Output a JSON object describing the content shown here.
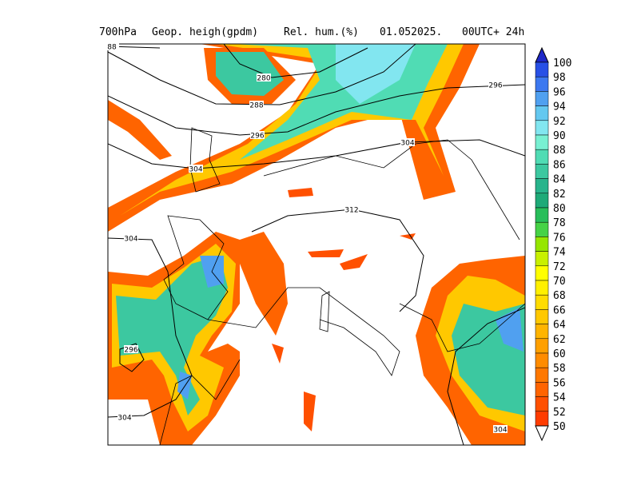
{
  "header": {
    "parts": [
      "700hPa",
      "Geop. heigh(gpdm)",
      "Rel. hum.(%)",
      "01.052025.",
      "00UTC+ 24h"
    ]
  },
  "map": {
    "contour_labels": [
      "88",
      "280",
      "288",
      "296",
      "304",
      "312",
      "304",
      "296",
      "304",
      "304",
      "296",
      "304"
    ]
  },
  "colorbar": {
    "labels": [
      100,
      98,
      96,
      94,
      92,
      90,
      88,
      86,
      84,
      82,
      80,
      78,
      76,
      74,
      72,
      70,
      68,
      66,
      64,
      62,
      60,
      58,
      56,
      54,
      52,
      50
    ],
    "colors": [
      "#2850e6",
      "#3c78f0",
      "#50a0f0",
      "#64c8f0",
      "#82e6f0",
      "#78f0d2",
      "#50dcb4",
      "#3cc8a0",
      "#28b48c",
      "#1eaa78",
      "#28be5a",
      "#46d246",
      "#96e600",
      "#c8f000",
      "#ffff00",
      "#fff000",
      "#ffdc00",
      "#ffc800",
      "#ffb400",
      "#ffa000",
      "#ff8c00",
      "#ff7800",
      "#ff6400",
      "#ff5000",
      "#ff3c00"
    ],
    "over_color": "#1e28c8",
    "under_color": "#ffffff"
  }
}
